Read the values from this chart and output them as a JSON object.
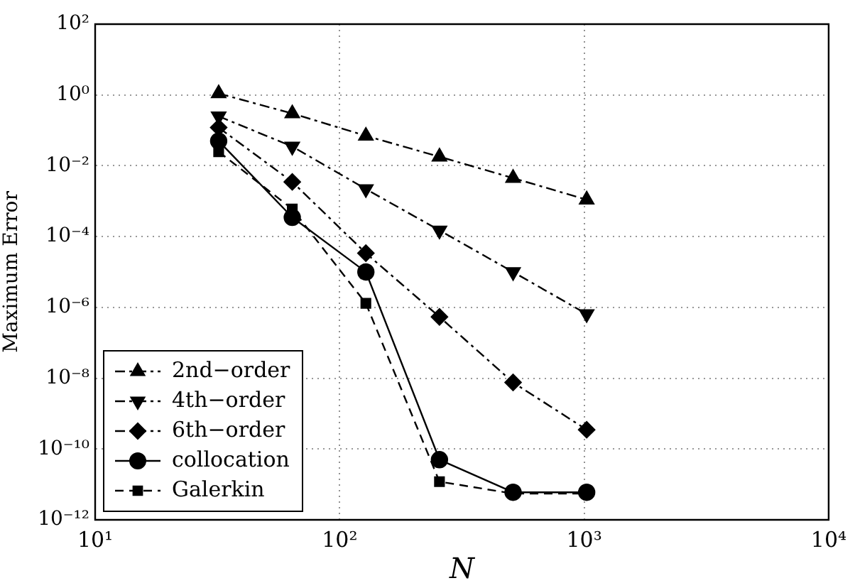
{
  "chart_data": {
    "type": "line",
    "xlabel": "N",
    "ylabel": "Maximum Error",
    "log": "xy",
    "grid": true,
    "legend": "bottom left",
    "x": [
      32,
      64,
      128,
      256,
      512,
      1024
    ],
    "xlim": [
      10,
      10000
    ],
    "xticks": [
      {
        "value": 10,
        "label": "10¹"
      },
      {
        "value": 100,
        "label": "10²"
      },
      {
        "value": 1000,
        "label": "10³"
      },
      {
        "value": 10000,
        "label": "10⁴"
      }
    ],
    "ylim": [
      1e-12,
      100
    ],
    "yticks": [
      {
        "value": 1e-12,
        "label": "10⁻¹²"
      },
      {
        "value": 1e-10,
        "label": "10⁻¹⁰"
      },
      {
        "value": 1e-08,
        "label": "10⁻⁸"
      },
      {
        "value": 1e-06,
        "label": "10⁻⁶"
      },
      {
        "value": 0.0001,
        "label": "10⁻⁴"
      },
      {
        "value": 0.01,
        "label": "10⁻²"
      },
      {
        "value": 1,
        "label": "10⁰"
      },
      {
        "value": 100,
        "label": "10²"
      }
    ],
    "series": [
      {
        "name": "2nd−order",
        "color": "#000000",
        "marker": "triangle",
        "line_style": "dashdot",
        "values": [
          1.1,
          0.3,
          0.07,
          0.018,
          0.0045,
          0.0011
        ]
      },
      {
        "name": "4th−order",
        "color": "#000000",
        "marker": "triangle-down",
        "line_style": "dashdot",
        "values": [
          0.25,
          0.035,
          0.0022,
          0.00015,
          1e-05,
          6.5e-07
        ]
      },
      {
        "name": "6th−order",
        "color": "#000000",
        "marker": "diamond",
        "line_style": "dashdot",
        "values": [
          0.12,
          0.0035,
          3.4e-05,
          5.4e-07,
          7.6e-09,
          3.5e-10
        ]
      },
      {
        "name": "collocation",
        "color": "#000000",
        "marker": "circle",
        "line_style": "solid",
        "values": [
          0.05,
          0.00035,
          1e-05,
          5e-11,
          6e-12,
          6e-12
        ]
      },
      {
        "name": "Galerkin",
        "color": "#000000",
        "marker": "square",
        "line_style": "dashed",
        "values": [
          0.025,
          0.0006,
          1.3e-06,
          1.2e-11,
          5.5e-12,
          5.5e-12
        ]
      }
    ]
  }
}
